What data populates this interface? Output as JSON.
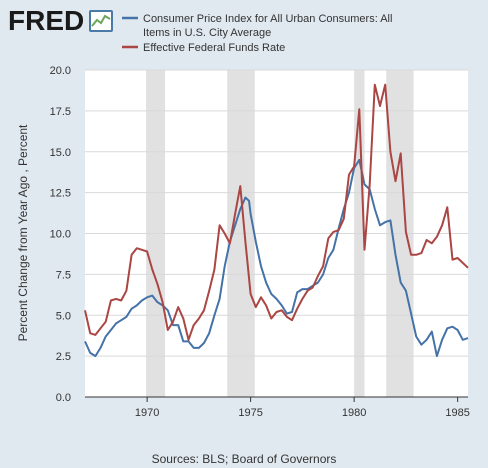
{
  "brand": {
    "name": "FRED",
    "mark": "line-chart-icon"
  },
  "source": "Sources: BLS; Board of Governors",
  "colors": {
    "page_bg": "#e1e9f0",
    "plot_bg": "#ffffff",
    "recession": "#e1e1e1",
    "cpi": "#4572a7",
    "fedfunds": "#aa4643",
    "grid": "#d9d9d9",
    "text": "#333333",
    "logo": "#1a1a1a"
  },
  "chart_data": {
    "type": "line",
    "ylabel": "Percent Change from Year Ago , Percent",
    "xlim": [
      1967.0,
      1985.5
    ],
    "ylim": [
      0,
      20
    ],
    "yticks": [
      {
        "value": 0,
        "label": "0.0"
      },
      {
        "value": 2.5,
        "label": "2.5"
      },
      {
        "value": 5,
        "label": "5.0"
      },
      {
        "value": 7.5,
        "label": "7.5"
      },
      {
        "value": 10,
        "label": "10.0"
      },
      {
        "value": 12.5,
        "label": "12.5"
      },
      {
        "value": 15,
        "label": "15.0"
      },
      {
        "value": 17.5,
        "label": "17.5"
      },
      {
        "value": 20,
        "label": "20.0"
      }
    ],
    "xticks": [
      {
        "value": 1970,
        "label": "1970"
      },
      {
        "value": 1975,
        "label": "1975"
      },
      {
        "value": 1980,
        "label": "1980"
      },
      {
        "value": 1985,
        "label": "1985"
      }
    ],
    "grid": "horizontal",
    "legend_position": "top",
    "recessions": [
      {
        "start": 1969.95,
        "end": 1970.87
      },
      {
        "start": 1973.87,
        "end": 1975.2
      },
      {
        "start": 1980.0,
        "end": 1980.5
      },
      {
        "start": 1981.55,
        "end": 1982.87
      }
    ],
    "series": [
      {
        "name": "Consumer Price Index for All Urban Consumers: All Items in U.S. City Average",
        "color_key": "cpi",
        "x": [
          1967.0,
          1967.25,
          1967.5,
          1967.75,
          1968.0,
          1968.25,
          1968.5,
          1968.75,
          1969.0,
          1969.25,
          1969.5,
          1969.75,
          1970.0,
          1970.25,
          1970.5,
          1970.75,
          1971.0,
          1971.25,
          1971.5,
          1971.75,
          1972.0,
          1972.25,
          1972.5,
          1972.75,
          1973.0,
          1973.25,
          1973.5,
          1973.75,
          1974.0,
          1974.25,
          1974.5,
          1974.75,
          1974.92,
          1975.0,
          1975.25,
          1975.5,
          1975.75,
          1976.0,
          1976.25,
          1976.5,
          1976.75,
          1977.0,
          1977.25,
          1977.5,
          1977.75,
          1978.0,
          1978.25,
          1978.5,
          1978.75,
          1979.0,
          1979.25,
          1979.5,
          1979.75,
          1980.0,
          1980.25,
          1980.5,
          1980.75,
          1981.0,
          1981.25,
          1981.5,
          1981.75,
          1982.0,
          1982.25,
          1982.5,
          1982.75,
          1983.0,
          1983.25,
          1983.5,
          1983.75,
          1984.0,
          1984.25,
          1984.5,
          1984.75,
          1985.0,
          1985.25,
          1985.5
        ],
        "y": [
          3.4,
          2.7,
          2.5,
          3.0,
          3.7,
          4.1,
          4.5,
          4.7,
          4.9,
          5.4,
          5.6,
          5.9,
          6.1,
          6.2,
          5.8,
          5.6,
          5.3,
          4.4,
          4.4,
          3.4,
          3.4,
          3.0,
          3.0,
          3.3,
          3.9,
          5.0,
          6.0,
          8.0,
          9.5,
          10.5,
          11.5,
          12.2,
          12.0,
          11.2,
          9.5,
          8.0,
          7.0,
          6.3,
          6.0,
          5.6,
          5.1,
          5.2,
          6.4,
          6.6,
          6.6,
          6.8,
          7.0,
          7.5,
          8.5,
          9.0,
          10.3,
          11.5,
          12.5,
          14.0,
          14.5,
          13.0,
          12.7,
          11.5,
          10.5,
          10.7,
          10.8,
          8.7,
          7.0,
          6.5,
          5.1,
          3.7,
          3.2,
          3.5,
          4.0,
          2.5,
          3.5,
          4.2,
          4.3,
          4.1,
          3.5,
          3.6
        ]
      },
      {
        "name": "Effective Federal Funds Rate",
        "color_key": "fedfunds",
        "x": [
          1967.0,
          1967.25,
          1967.5,
          1967.75,
          1968.0,
          1968.25,
          1968.5,
          1968.75,
          1969.0,
          1969.25,
          1969.5,
          1969.75,
          1970.0,
          1970.25,
          1970.5,
          1970.75,
          1971.0,
          1971.25,
          1971.5,
          1971.75,
          1972.0,
          1972.25,
          1972.5,
          1972.75,
          1973.0,
          1973.25,
          1973.5,
          1973.75,
          1974.0,
          1974.25,
          1974.5,
          1974.75,
          1975.0,
          1975.25,
          1975.5,
          1975.75,
          1976.0,
          1976.25,
          1976.5,
          1976.75,
          1977.0,
          1977.25,
          1977.5,
          1977.75,
          1978.0,
          1978.25,
          1978.5,
          1978.75,
          1979.0,
          1979.25,
          1979.5,
          1979.75,
          1980.0,
          1980.25,
          1980.5,
          1980.75,
          1981.0,
          1981.25,
          1981.5,
          1981.75,
          1982.0,
          1982.25,
          1982.5,
          1982.75,
          1983.0,
          1983.25,
          1983.5,
          1983.75,
          1984.0,
          1984.25,
          1984.5,
          1984.75,
          1985.0,
          1985.25,
          1985.5
        ],
        "y": [
          5.3,
          3.9,
          3.8,
          4.2,
          4.6,
          5.9,
          6.0,
          5.9,
          6.5,
          8.7,
          9.1,
          9.0,
          8.9,
          7.8,
          6.9,
          5.8,
          4.1,
          4.6,
          5.5,
          4.8,
          3.5,
          4.4,
          4.8,
          5.3,
          6.5,
          7.8,
          10.5,
          10.0,
          9.4,
          11.2,
          12.9,
          9.5,
          6.3,
          5.5,
          6.1,
          5.6,
          4.8,
          5.2,
          5.3,
          4.9,
          4.7,
          5.4,
          6.0,
          6.5,
          6.7,
          7.4,
          8.0,
          9.7,
          10.1,
          10.2,
          10.9,
          13.6,
          14.1,
          17.6,
          9.0,
          13.0,
          19.1,
          17.8,
          19.1,
          15.0,
          13.2,
          14.9,
          10.1,
          8.7,
          8.7,
          8.8,
          9.6,
          9.4,
          9.8,
          10.5,
          11.6,
          8.4,
          8.5,
          8.2,
          7.9
        ]
      }
    ]
  }
}
